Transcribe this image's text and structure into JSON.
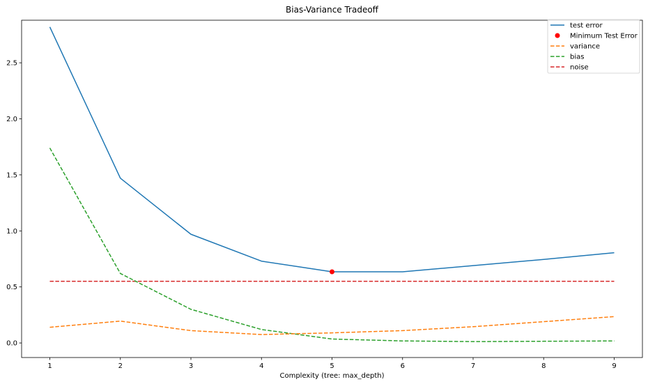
{
  "chart_data": {
    "type": "line",
    "title": "Bias-Variance Tradeoff",
    "xlabel": "Complexity (tree: max_depth)",
    "ylabel": "",
    "xlim": [
      0.6,
      9.4
    ],
    "ylim": [
      -0.13,
      2.88
    ],
    "x": [
      1,
      2,
      3,
      4,
      5,
      6,
      7,
      8,
      9
    ],
    "xticks": [
      1,
      2,
      3,
      4,
      5,
      6,
      7,
      8,
      9
    ],
    "yticks": [
      0.0,
      0.5,
      1.0,
      1.5,
      2.0,
      2.5
    ],
    "ytick_labels": [
      "0.0",
      "0.5",
      "1.0",
      "1.5",
      "2.0",
      "2.5"
    ],
    "grid": false,
    "legend_position": "top-right",
    "series": [
      {
        "name": "test error",
        "style": "solid",
        "color": "#1f77b4",
        "values": [
          2.82,
          1.47,
          0.97,
          0.73,
          0.635,
          0.635,
          0.69,
          0.745,
          0.805
        ]
      },
      {
        "name": "Minimum Test Error",
        "style": "marker",
        "color": "#ff0000",
        "points": [
          [
            5,
            0.635
          ]
        ]
      },
      {
        "name": "variance",
        "style": "dashed",
        "color": "#ff7f0e",
        "values": [
          0.14,
          0.195,
          0.11,
          0.075,
          0.09,
          0.11,
          0.145,
          0.19,
          0.235
        ]
      },
      {
        "name": "bias",
        "style": "dashed",
        "color": "#2ca02c",
        "values": [
          1.74,
          0.62,
          0.3,
          0.12,
          0.035,
          0.018,
          0.012,
          0.015,
          0.018
        ]
      },
      {
        "name": "noise",
        "style": "dashed",
        "color": "#d62728",
        "values": [
          0.55,
          0.55,
          0.55,
          0.55,
          0.55,
          0.55,
          0.55,
          0.55,
          0.55
        ]
      }
    ]
  }
}
